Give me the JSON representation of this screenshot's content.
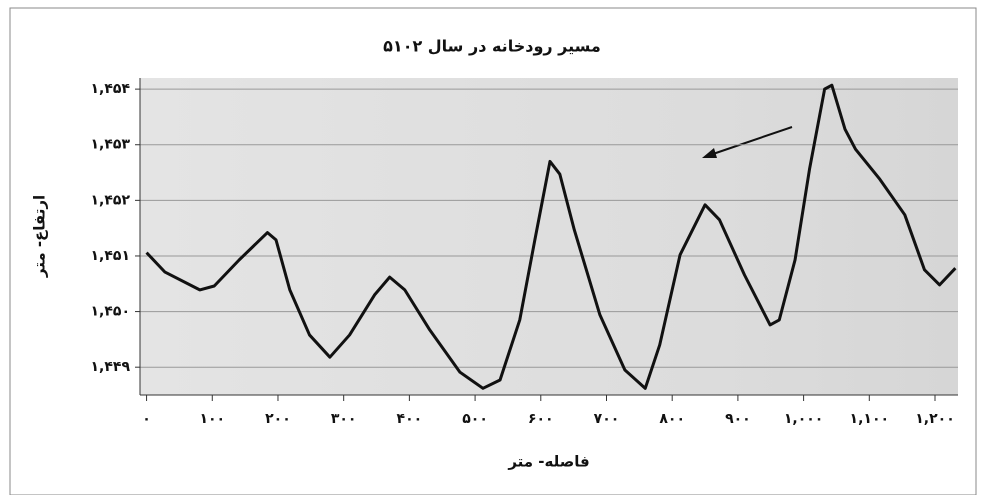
{
  "chart_data": {
    "type": "line",
    "title": "مسیر رودخانه در سال ۵۱۰۲",
    "x_label": "فاصله- متر",
    "y_label": "ارتفاع- متر",
    "x": [
      0,
      28,
      81,
      103,
      141,
      184,
      197,
      218,
      248,
      279,
      309,
      347,
      370,
      393,
      431,
      477,
      512,
      538,
      568,
      591,
      614,
      629,
      651,
      690,
      728,
      759,
      781,
      812,
      850,
      872,
      910,
      949,
      963,
      987,
      1009,
      1032,
      1043,
      1063,
      1079,
      1116,
      1154,
      1184,
      1207,
      1231
    ],
    "series": [
      {
        "name": "ارتفاع",
        "color": "#111111",
        "values": [
          1451.06,
          1450.71,
          1450.39,
          1450.46,
          1450.93,
          1451.42,
          1451.29,
          1450.39,
          1449.58,
          1449.18,
          1449.58,
          1450.3,
          1450.62,
          1450.39,
          1449.67,
          1448.91,
          1448.62,
          1448.77,
          1449.85,
          1451.29,
          1452.7,
          1452.47,
          1451.47,
          1449.94,
          1448.95,
          1448.62,
          1449.4,
          1451.02,
          1451.92,
          1451.65,
          1450.66,
          1449.76,
          1449.85,
          1450.93,
          1452.56,
          1454.0,
          1454.07,
          1453.28,
          1452.92,
          1452.38,
          1451.74,
          1450.75,
          1450.48,
          1450.78
        ]
      }
    ],
    "xlim": [
      -10,
      1235
    ],
    "ylim": [
      1448.5,
      1454.2
    ],
    "xticks": [
      {
        "value": 0,
        "label": "۰"
      },
      {
        "value": 100,
        "label": "۱۰۰"
      },
      {
        "value": 200,
        "label": "۲۰۰"
      },
      {
        "value": 300,
        "label": "۳۰۰"
      },
      {
        "value": 400,
        "label": "۴۰۰"
      },
      {
        "value": 500,
        "label": "۵۰۰"
      },
      {
        "value": 600,
        "label": "۶۰۰"
      },
      {
        "value": 700,
        "label": "۷۰۰"
      },
      {
        "value": 800,
        "label": "۸۰۰"
      },
      {
        "value": 900,
        "label": "۹۰۰"
      },
      {
        "value": 1000,
        "label": "۱,۰۰۰"
      },
      {
        "value": 1100,
        "label": "۱,۱۰۰"
      },
      {
        "value": 1200,
        "label": "۱,۲۰۰"
      }
    ],
    "yticks": [
      {
        "value": 1449,
        "label": "۱,۴۴۹"
      },
      {
        "value": 1450,
        "label": "۱,۴۵۰"
      },
      {
        "value": 1451,
        "label": "۱,۴۵۱"
      },
      {
        "value": 1452,
        "label": "۱,۴۵۲"
      },
      {
        "value": 1453,
        "label": "۱,۴۵۳"
      },
      {
        "value": 1454,
        "label": "۱,۴۵۴"
      }
    ],
    "grid": true
  }
}
